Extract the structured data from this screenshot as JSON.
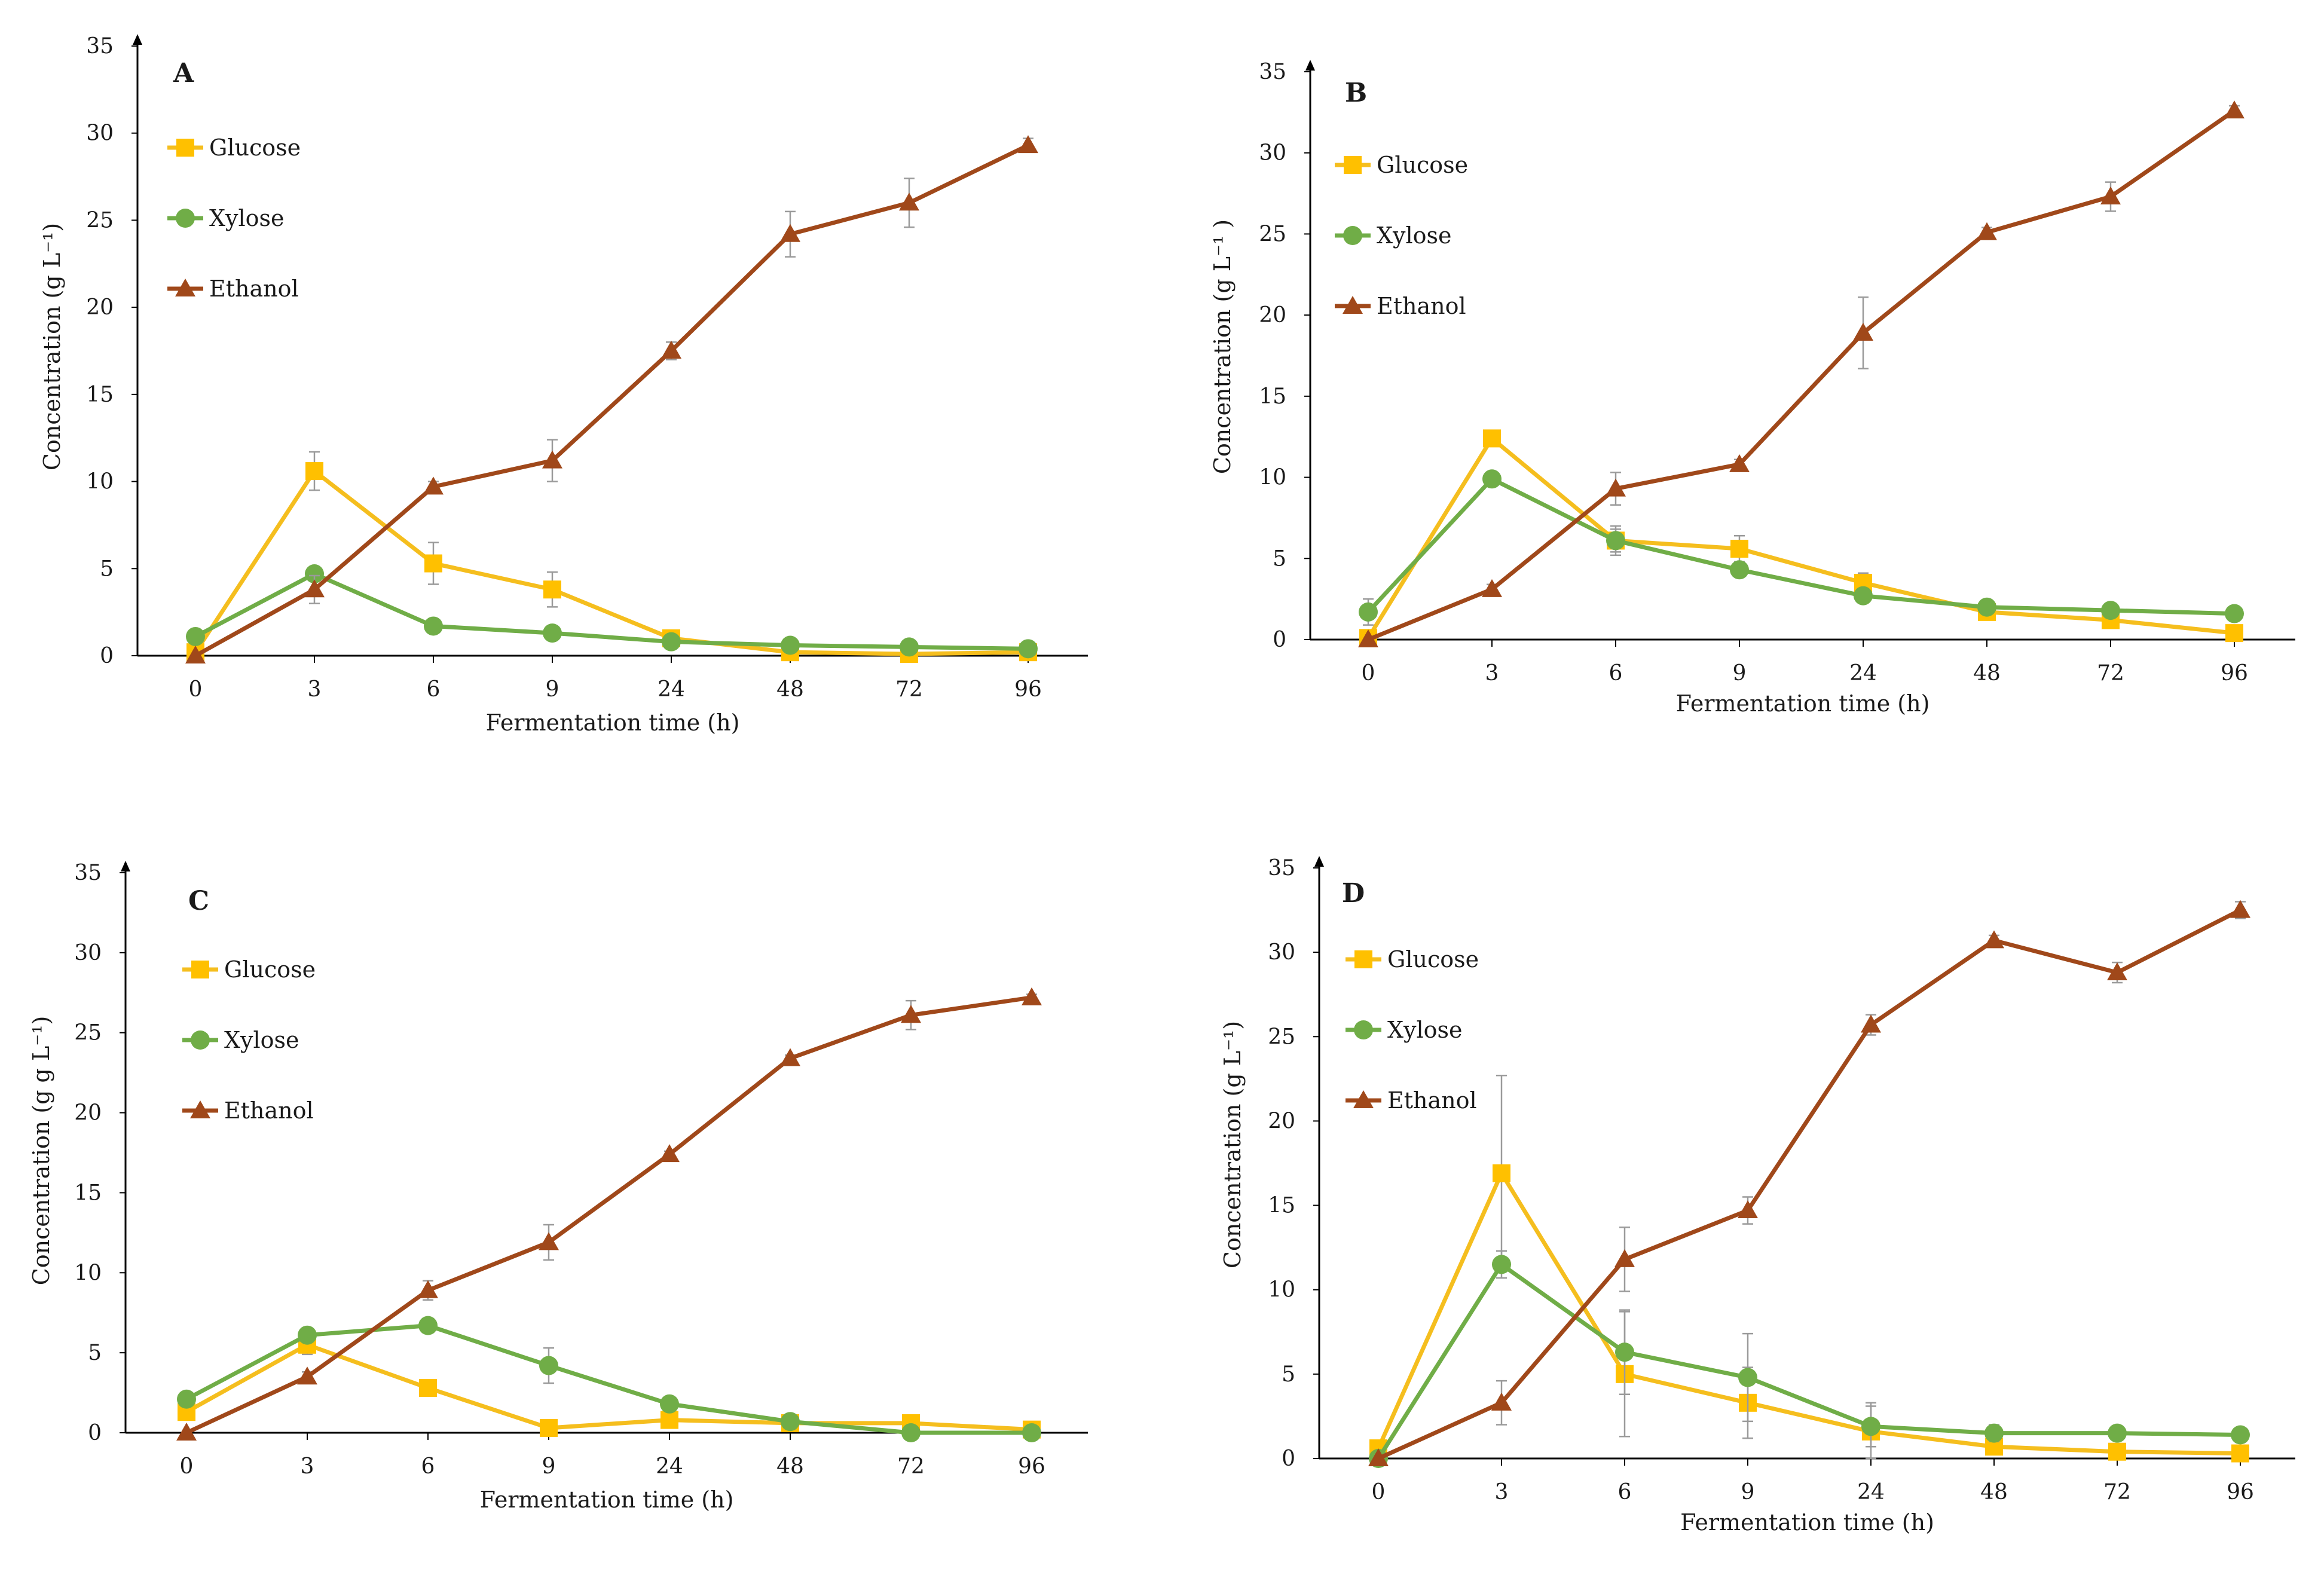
{
  "colors": {
    "glucose": "#F5BE1E",
    "glucose_marker": "#FFC000",
    "xylose": "#70AD47",
    "ethanol": "#A0481A",
    "axis": "#000000",
    "error_bar": "#9A9A9A"
  },
  "chart_data": [
    {
      "type": "line",
      "title": "A",
      "xlabel": "Fermentation time (h)",
      "ylabel": "Concentration (g L⁻¹)",
      "categories": [
        "0",
        "3",
        "6",
        "9",
        "24",
        "48",
        "72",
        "96"
      ],
      "yticks": [
        "0",
        "5",
        "10",
        "15",
        "20",
        "25",
        "30",
        "35"
      ],
      "ylim": [
        0,
        35
      ],
      "legend_position": "top-left",
      "series": [
        {
          "name": "Glucose",
          "values": [
            0.2,
            10.6,
            5.3,
            3.8,
            1.0,
            0.2,
            0.1,
            0.2
          ],
          "errors": [
            0,
            1.1,
            1.2,
            1.0,
            0.2,
            0.1,
            0.1,
            0.1
          ]
        },
        {
          "name": "Xylose",
          "values": [
            1.1,
            4.7,
            1.7,
            1.3,
            0.8,
            0.6,
            0.5,
            0.4
          ],
          "errors": [
            0.1,
            0.4,
            0.2,
            0.1,
            0.1,
            0.1,
            0.1,
            0.1
          ]
        },
        {
          "name": "Ethanol",
          "values": [
            0,
            3.8,
            9.7,
            11.2,
            17.5,
            24.2,
            26.0,
            29.3
          ],
          "errors": [
            0,
            0.8,
            0.3,
            1.2,
            0.5,
            1.3,
            1.4,
            0.4
          ]
        }
      ]
    },
    {
      "type": "line",
      "title": "B",
      "xlabel": "Fermentation time (h)",
      "ylabel": "Concentration (g L⁻¹ )",
      "categories": [
        "0",
        "3",
        "6",
        "9",
        "24",
        "48",
        "72",
        "96"
      ],
      "yticks": [
        "0",
        "5",
        "10",
        "15",
        "20",
        "25",
        "30",
        "35"
      ],
      "ylim": [
        0,
        35
      ],
      "legend_position": "top-left",
      "series": [
        {
          "name": "Glucose",
          "values": [
            0.1,
            12.4,
            6.1,
            5.6,
            3.5,
            1.7,
            1.2,
            0.4
          ],
          "errors": [
            0,
            0.3,
            0.7,
            0.8,
            0.6,
            0.2,
            0.2,
            0.1
          ]
        },
        {
          "name": "Xylose",
          "values": [
            1.7,
            9.9,
            6.1,
            4.3,
            2.7,
            2.0,
            1.8,
            1.6
          ],
          "errors": [
            0.8,
            0.3,
            0.9,
            0.4,
            0.3,
            0.2,
            0.2,
            0.2
          ]
        },
        {
          "name": "Ethanol",
          "values": [
            0,
            3.1,
            9.3,
            10.8,
            18.9,
            25.1,
            27.3,
            32.6
          ],
          "errors": [
            0,
            0.3,
            1.0,
            0.3,
            2.2,
            0.3,
            0.9,
            0.3
          ]
        }
      ]
    },
    {
      "type": "line",
      "title": "C",
      "xlabel": "Fermentation time (h)",
      "ylabel": "Concentration (g g L⁻¹)",
      "categories": [
        "0",
        "3",
        "6",
        "9",
        "24",
        "48",
        "72",
        "96"
      ],
      "yticks": [
        "0",
        "5",
        "10",
        "15",
        "20",
        "25",
        "30",
        "35"
      ],
      "ylim": [
        0,
        35
      ],
      "legend_position": "top-left",
      "series": [
        {
          "name": "Glucose",
          "values": [
            1.3,
            5.5,
            2.8,
            0.3,
            0.8,
            0.6,
            0.6,
            0.2
          ],
          "errors": [
            0.2,
            0.6,
            0.3,
            0.2,
            0.1,
            0.1,
            0.1,
            0.1
          ]
        },
        {
          "name": "Xylose",
          "values": [
            2.1,
            6.1,
            6.7,
            4.2,
            1.8,
            0.7,
            0.0,
            0.0
          ],
          "errors": [
            0.2,
            0.3,
            0.2,
            1.1,
            0.2,
            0.4,
            0.1,
            0.1
          ]
        },
        {
          "name": "Ethanol",
          "values": [
            0,
            3.5,
            8.9,
            11.9,
            17.4,
            23.4,
            26.1,
            27.2
          ],
          "errors": [
            0,
            0.3,
            0.6,
            1.1,
            0.2,
            0.2,
            0.9,
            0.2
          ]
        }
      ]
    },
    {
      "type": "line",
      "title": "D",
      "xlabel": "Fermentation time (h)",
      "ylabel": "Concentration (g L⁻¹)",
      "categories": [
        "0",
        "3",
        "6",
        "9",
        "24",
        "48",
        "72",
        "96"
      ],
      "yticks": [
        "0",
        "5",
        "10",
        "15",
        "20",
        "25",
        "30",
        "35"
      ],
      "ylim": [
        0,
        35
      ],
      "legend_position": "top-left",
      "series": [
        {
          "name": "Glucose",
          "values": [
            0.6,
            16.9,
            5.0,
            3.3,
            1.6,
            0.7,
            0.4,
            0.3
          ],
          "errors": [
            0.2,
            5.8,
            3.7,
            2.1,
            1.7,
            0.3,
            0.2,
            0.1
          ]
        },
        {
          "name": "Xylose",
          "values": [
            0,
            11.5,
            6.3,
            4.8,
            1.9,
            1.5,
            1.5,
            1.4
          ],
          "errors": [
            0,
            0.8,
            2.5,
            2.6,
            1.2,
            0.5,
            0.2,
            0.2
          ]
        },
        {
          "name": "Ethanol",
          "values": [
            0,
            3.3,
            11.8,
            14.7,
            25.7,
            30.7,
            28.8,
            32.5
          ],
          "errors": [
            0,
            1.3,
            1.9,
            0.8,
            0.6,
            0.3,
            0.6,
            0.5
          ]
        }
      ]
    }
  ]
}
